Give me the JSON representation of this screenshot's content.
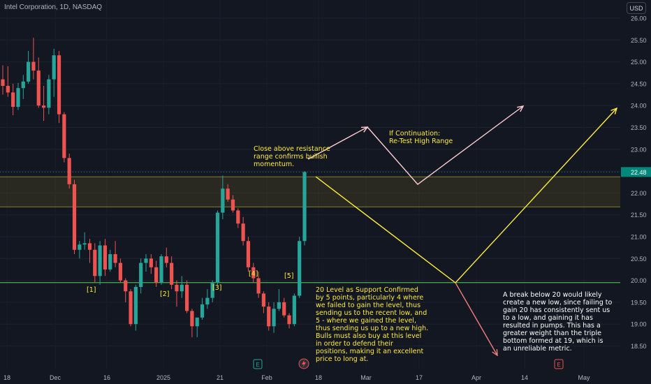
{
  "header": {
    "title": "Intel Corporation, 1D, NASDAQ",
    "currency_button": "USD"
  },
  "colors": {
    "background": "#131722",
    "up": "#26a69a",
    "down": "#ef5350",
    "support_line": "#4caf50",
    "zone": "#ffeb3b",
    "arrow_yellow": "#ffeb3b",
    "arrow_pink": "#ffcdd2",
    "arrow_red": "#f07c7c",
    "last_price": "#00897b"
  },
  "chart_data": {
    "type": "candlestick",
    "symbol": "INTC",
    "timeframe": "1D",
    "exchange": "NASDAQ",
    "y_ticks": [
      26.0,
      25.5,
      25.0,
      24.5,
      24.0,
      23.5,
      23.0,
      22.5,
      22.0,
      21.5,
      21.0,
      20.5,
      20.0,
      19.5,
      19.0,
      18.5
    ],
    "ylim": [
      18.2,
      26.2
    ],
    "x_ticks": [
      "18",
      "Dec",
      "16",
      "2025",
      "21",
      "Feb",
      "18",
      "Mar",
      "17",
      "Apr",
      "14",
      "May"
    ],
    "last_price": 22.48,
    "last_price_label": "22.48",
    "support_level": 19.95,
    "resistance_zone": [
      21.68,
      22.37
    ],
    "candles": [
      [
        24.6,
        24.92,
        24.25,
        24.45
      ],
      [
        24.45,
        24.9,
        24.2,
        24.3
      ],
      [
        24.3,
        24.5,
        23.78,
        23.97
      ],
      [
        23.97,
        24.52,
        23.9,
        24.4
      ],
      [
        24.4,
        24.7,
        24.15,
        24.55
      ],
      [
        24.55,
        25.25,
        24.5,
        25.0
      ],
      [
        25.0,
        25.55,
        24.6,
        24.8
      ],
      [
        24.8,
        25.1,
        23.95,
        24.0
      ],
      [
        24.0,
        24.45,
        23.65,
        23.95
      ],
      [
        23.95,
        24.7,
        23.8,
        24.6
      ],
      [
        24.6,
        25.3,
        24.2,
        25.15
      ],
      [
        25.15,
        25.25,
        23.6,
        23.8
      ],
      [
        23.8,
        23.85,
        22.7,
        22.8
      ],
      [
        22.8,
        22.9,
        22.1,
        22.2
      ],
      [
        22.2,
        22.3,
        20.6,
        20.7
      ],
      [
        20.7,
        20.9,
        20.5,
        20.82
      ],
      [
        20.82,
        21.1,
        20.7,
        20.85
      ],
      [
        20.85,
        20.95,
        20.4,
        20.7
      ],
      [
        20.7,
        20.85,
        19.95,
        20.1
      ],
      [
        20.1,
        20.9,
        19.9,
        20.8
      ],
      [
        20.8,
        20.95,
        20.1,
        20.25
      ],
      [
        20.25,
        20.7,
        20.2,
        20.6
      ],
      [
        20.6,
        20.9,
        20.3,
        20.4
      ],
      [
        20.4,
        20.5,
        19.95,
        20.0
      ],
      [
        20.0,
        20.05,
        19.5,
        19.75
      ],
      [
        19.75,
        19.8,
        18.95,
        19.0
      ],
      [
        19.0,
        19.9,
        18.85,
        19.85
      ],
      [
        19.85,
        20.5,
        19.7,
        20.4
      ],
      [
        20.4,
        20.6,
        20.2,
        20.5
      ],
      [
        20.5,
        20.6,
        20.15,
        20.3
      ],
      [
        20.3,
        20.45,
        19.85,
        19.95
      ],
      [
        19.95,
        20.6,
        19.9,
        20.55
      ],
      [
        20.55,
        20.75,
        20.3,
        20.4
      ],
      [
        20.4,
        20.55,
        19.8,
        19.9
      ],
      [
        19.9,
        20.0,
        19.4,
        19.75
      ],
      [
        19.75,
        20.1,
        19.6,
        19.9
      ],
      [
        19.9,
        20.0,
        19.25,
        19.3
      ],
      [
        19.3,
        19.35,
        18.7,
        18.95
      ],
      [
        18.95,
        19.1,
        18.7,
        19.15
      ],
      [
        19.15,
        19.6,
        19.1,
        19.45
      ],
      [
        19.45,
        19.8,
        19.35,
        19.6
      ],
      [
        19.6,
        20.0,
        19.5,
        19.95
      ],
      [
        19.95,
        21.6,
        19.9,
        21.55
      ],
      [
        21.55,
        22.4,
        21.4,
        22.1
      ],
      [
        22.1,
        22.2,
        21.8,
        21.85
      ],
      [
        21.85,
        21.95,
        21.55,
        21.6
      ],
      [
        21.6,
        21.65,
        21.2,
        21.3
      ],
      [
        21.3,
        21.45,
        20.8,
        20.9
      ],
      [
        20.9,
        21.0,
        20.2,
        20.3
      ],
      [
        20.3,
        20.4,
        19.95,
        20.05
      ],
      [
        20.05,
        20.2,
        19.6,
        19.7
      ],
      [
        19.7,
        19.75,
        19.25,
        19.4
      ],
      [
        19.4,
        19.5,
        18.85,
        18.95
      ],
      [
        18.95,
        19.5,
        18.8,
        19.35
      ],
      [
        19.35,
        19.8,
        19.3,
        19.5
      ],
      [
        19.5,
        19.6,
        19.15,
        19.2
      ],
      [
        19.2,
        19.25,
        18.9,
        19.0
      ],
      [
        19.0,
        19.7,
        18.95,
        19.65
      ],
      [
        19.65,
        21.0,
        19.6,
        20.9
      ],
      [
        20.9,
        22.5,
        20.8,
        22.48
      ]
    ]
  },
  "annotations": {
    "label_1": "[1]",
    "label_2": "[2]",
    "label_3": "[3]",
    "label_4": "[4]",
    "label_5": "[5]",
    "resistance_note": "Close above resistance\nrange confirms bullish\nmomentum.",
    "continuation_note": "If Continuation:\nRe-Test High Range",
    "support_note": "20 Level as Support Confirmed\nby 5 points, particularly 4 where\nwe failed to gain the level, thus\nsending us to the recent low, and\n5 - where we gained the level,\nthus sending us up to a new high.\nBulls must also buy at this level\nin order to defend their\npositions, making it an excellent\nprice to long at.",
    "breakdown_note": "A break below 20 would likely\ncreate a new low, since failing to\ngain 20 has consistently sent us\nto a low, and gaining it has\nresulted in pumps. This has a\ngreater weight than the triple\nbottom formed at 19, which is\nan unreliable metric.",
    "earnings_marker_1": "E",
    "earnings_marker_2": "E"
  }
}
